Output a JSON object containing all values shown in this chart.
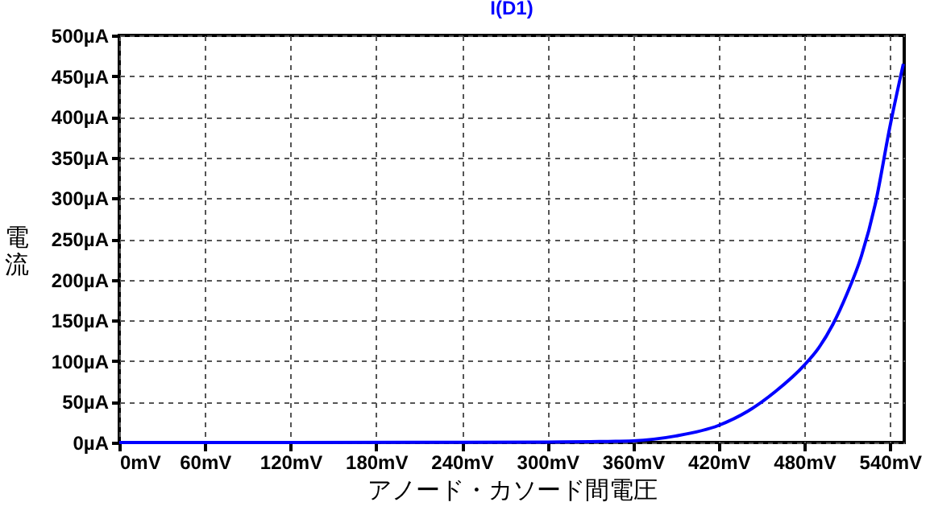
{
  "chart_data": {
    "type": "line",
    "title": "I(D1)",
    "xlabel": "アノード・カソード間電圧",
    "ylabel": "電流",
    "x": [
      0,
      240,
      300,
      330,
      360,
      390,
      420,
      440,
      460,
      480,
      490,
      500,
      510,
      520,
      530,
      540,
      549.4
    ],
    "series": [
      {
        "color": "#0000ff",
        "values": [
          0,
          0.2,
          0.5,
          1,
          2,
          8,
          21,
          38,
          63,
          95,
          116,
          145,
          183,
          229,
          295,
          388,
          465
        ]
      }
    ],
    "xlim": [
      0,
      550
    ],
    "xticks": [
      {
        "value": 0,
        "label": "0mV"
      },
      {
        "value": 60,
        "label": "60mV"
      },
      {
        "value": 120,
        "label": "120mV"
      },
      {
        "value": 180,
        "label": "180mV"
      },
      {
        "value": 240,
        "label": "240mV"
      },
      {
        "value": 300,
        "label": "300mV"
      },
      {
        "value": 360,
        "label": "360mV"
      },
      {
        "value": 420,
        "label": "420mV"
      },
      {
        "value": 480,
        "label": "480mV"
      },
      {
        "value": 540,
        "label": "540mV"
      }
    ],
    "ylim": [
      0,
      500
    ],
    "yticks": [
      {
        "value": 0,
        "label": "0µA"
      },
      {
        "value": 50,
        "label": "50µA"
      },
      {
        "value": 100,
        "label": "100µA"
      },
      {
        "value": 150,
        "label": "150µA"
      },
      {
        "value": 200,
        "label": "200µA"
      },
      {
        "value": 250,
        "label": "250µA"
      },
      {
        "value": 300,
        "label": "300µA"
      },
      {
        "value": 350,
        "label": "350µA"
      },
      {
        "value": 400,
        "label": "400µA"
      },
      {
        "value": 450,
        "label": "450µA"
      },
      {
        "value": 500,
        "label": "500µA"
      }
    ],
    "grid": true,
    "line_style": "solid",
    "marker": "none"
  }
}
